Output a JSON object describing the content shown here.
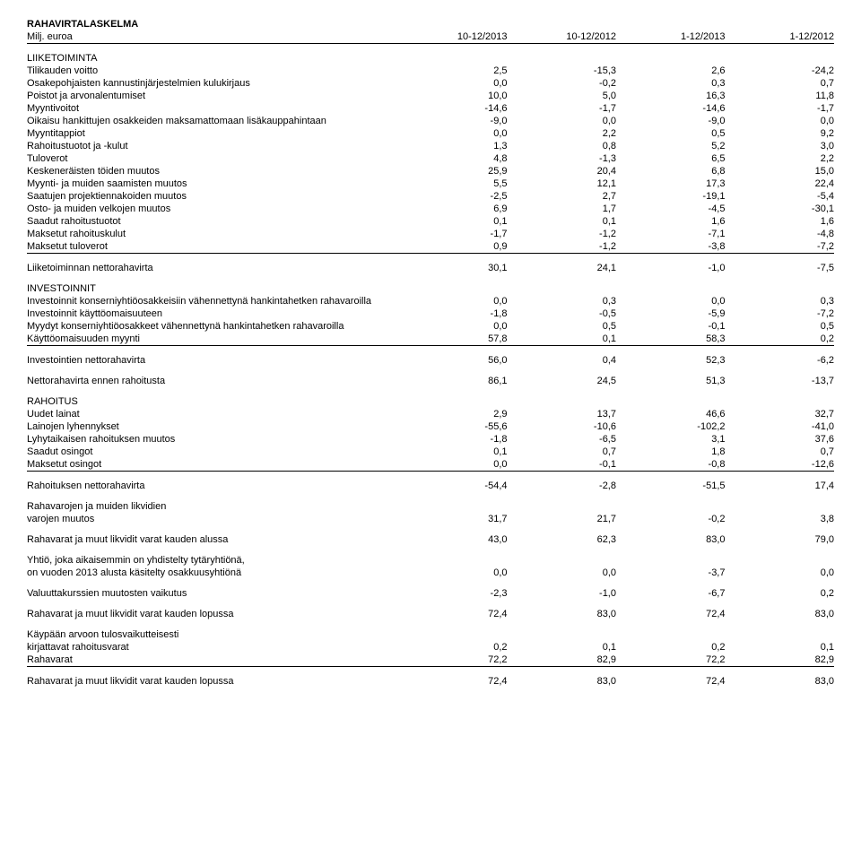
{
  "header": {
    "title1": "RAHAVIRTALASKELMA",
    "title2": "Milj. euroa",
    "cols": [
      "10-12/2013",
      "10-12/2012",
      "1-12/2013",
      "1-12/2012"
    ]
  },
  "s1_title": "LIIKETOIMINTA",
  "s1": [
    {
      "l": "Tilikauden voitto",
      "v": [
        "2,5",
        "-15,3",
        "2,6",
        "-24,2"
      ]
    },
    {
      "l": "Osakepohjaisten kannustinjärjestelmien kulukirjaus",
      "v": [
        "0,0",
        "-0,2",
        "0,3",
        "0,7"
      ]
    },
    {
      "l": "Poistot ja arvonalentumiset",
      "v": [
        "10,0",
        "5,0",
        "16,3",
        "11,8"
      ]
    },
    {
      "l": "Myyntivoitot",
      "v": [
        "-14,6",
        "-1,7",
        "-14,6",
        "-1,7"
      ]
    },
    {
      "l": "Oikaisu hankittujen osakkeiden maksamattomaan lisäkauppahintaan",
      "v": [
        "-9,0",
        "0,0",
        "-9,0",
        "0,0"
      ]
    },
    {
      "l": "Myyntitappiot",
      "v": [
        "0,0",
        "2,2",
        "0,5",
        "9,2"
      ]
    },
    {
      "l": "Rahoitustuotot ja -kulut",
      "v": [
        "1,3",
        "0,8",
        "5,2",
        "3,0"
      ]
    },
    {
      "l": "Tuloverot",
      "v": [
        "4,8",
        "-1,3",
        "6,5",
        "2,2"
      ]
    },
    {
      "l": "Keskeneräisten töiden muutos",
      "v": [
        "25,9",
        "20,4",
        "6,8",
        "15,0"
      ]
    },
    {
      "l": "Myynti- ja muiden saamisten muutos",
      "v": [
        "5,5",
        "12,1",
        "17,3",
        "22,4"
      ]
    },
    {
      "l": "Saatujen projektiennakoiden muutos",
      "v": [
        "-2,5",
        "2,7",
        "-19,1",
        "-5,4"
      ]
    },
    {
      "l": "Osto- ja muiden velkojen muutos",
      "v": [
        "6,9",
        "1,7",
        "-4,5",
        "-30,1"
      ]
    },
    {
      "l": "Saadut rahoitustuotot",
      "v": [
        "0,1",
        "0,1",
        "1,6",
        "1,6"
      ]
    },
    {
      "l": "Maksetut rahoituskulut",
      "v": [
        "-1,7",
        "-1,2",
        "-7,1",
        "-4,8"
      ]
    },
    {
      "l": "Maksetut tuloverot",
      "v": [
        "0,9",
        "-1,2",
        "-3,8",
        "-7,2"
      ],
      "u": true
    }
  ],
  "s1_total": {
    "l": "Liiketoiminnan nettorahavirta",
    "v": [
      "30,1",
      "24,1",
      "-1,0",
      "-7,5"
    ]
  },
  "s2_title": "INVESTOINNIT",
  "s2": [
    {
      "l": "Investoinnit konserniyhtiöosakkeisiin vähennettynä hankintahetken rahavaroilla",
      "v": [
        "0,0",
        "0,3",
        "0,0",
        "0,3"
      ]
    },
    {
      "l": "Investoinnit käyttöomaisuuteen",
      "v": [
        "-1,8",
        "-0,5",
        "-5,9",
        "-7,2"
      ]
    },
    {
      "l": "Myydyt konserniyhtiöosakkeet vähennettynä hankintahetken rahavaroilla",
      "v": [
        "0,0",
        "0,5",
        "-0,1",
        "0,5"
      ]
    },
    {
      "l": "Käyttöomaisuuden myynti",
      "v": [
        "57,8",
        "0,1",
        "58,3",
        "0,2"
      ],
      "u": true
    }
  ],
  "s2_total": {
    "l": "Investointien nettorahavirta",
    "v": [
      "56,0",
      "0,4",
      "52,3",
      "-6,2"
    ]
  },
  "pre_fin": {
    "l": "Nettorahavirta ennen rahoitusta",
    "v": [
      "86,1",
      "24,5",
      "51,3",
      "-13,7"
    ]
  },
  "s3_title": "RAHOITUS",
  "s3": [
    {
      "l": "Uudet lainat",
      "v": [
        "2,9",
        "13,7",
        "46,6",
        "32,7"
      ]
    },
    {
      "l": "Lainojen lyhennykset",
      "v": [
        "-55,6",
        "-10,6",
        "-102,2",
        "-41,0"
      ]
    },
    {
      "l": "Lyhytaikaisen rahoituksen muutos",
      "v": [
        "-1,8",
        "-6,5",
        "3,1",
        "37,6"
      ]
    },
    {
      "l": "Saadut osingot",
      "v": [
        "0,1",
        "0,7",
        "1,8",
        "0,7"
      ]
    },
    {
      "l": "Maksetut osingot",
      "v": [
        "0,0",
        "-0,1",
        "-0,8",
        "-12,6"
      ],
      "u": true
    }
  ],
  "s3_total": {
    "l": "Rahoituksen nettorahavirta",
    "v": [
      "-54,4",
      "-2,8",
      "-51,5",
      "17,4"
    ]
  },
  "change1": {
    "l1": "Rahavarojen ja muiden likvidien",
    "l2": "varojen muutos",
    "v": [
      "31,7",
      "21,7",
      "-0,2",
      "3,8"
    ]
  },
  "begin": {
    "l": "Rahavarat ja muut likvidit varat kauden alussa",
    "v": [
      "43,0",
      "62,3",
      "83,0",
      "79,0"
    ]
  },
  "assoc": {
    "l1": "Yhtiö, joka aikaisemmin on yhdistelty tytäryhtiönä,",
    "l2": "on vuoden 2013 alusta käsitelty osakkuusyhtiönä",
    "v": [
      "0,0",
      "0,0",
      "-3,7",
      "0,0"
    ]
  },
  "fx": {
    "l": "Valuuttakurssien muutosten vaikutus",
    "v": [
      "-2,3",
      "-1,0",
      "-6,7",
      "0,2"
    ]
  },
  "end1": {
    "l": "Rahavarat ja muut likvidit varat kauden lopussa",
    "v": [
      "72,4",
      "83,0",
      "72,4",
      "83,0"
    ]
  },
  "fair": {
    "l1": "Käypään arvoon tulosvaikutteisesti",
    "l2": "kirjattavat rahoitusvarat",
    "v": [
      "0,2",
      "0,1",
      "0,2",
      "0,1"
    ]
  },
  "cash": {
    "l": "Rahavarat",
    "v": [
      "72,2",
      "82,9",
      "72,2",
      "82,9"
    ],
    "u": true
  },
  "end2": {
    "l": "Rahavarat ja muut likvidit varat kauden lopussa",
    "v": [
      "72,4",
      "83,0",
      "72,4",
      "83,0"
    ]
  }
}
